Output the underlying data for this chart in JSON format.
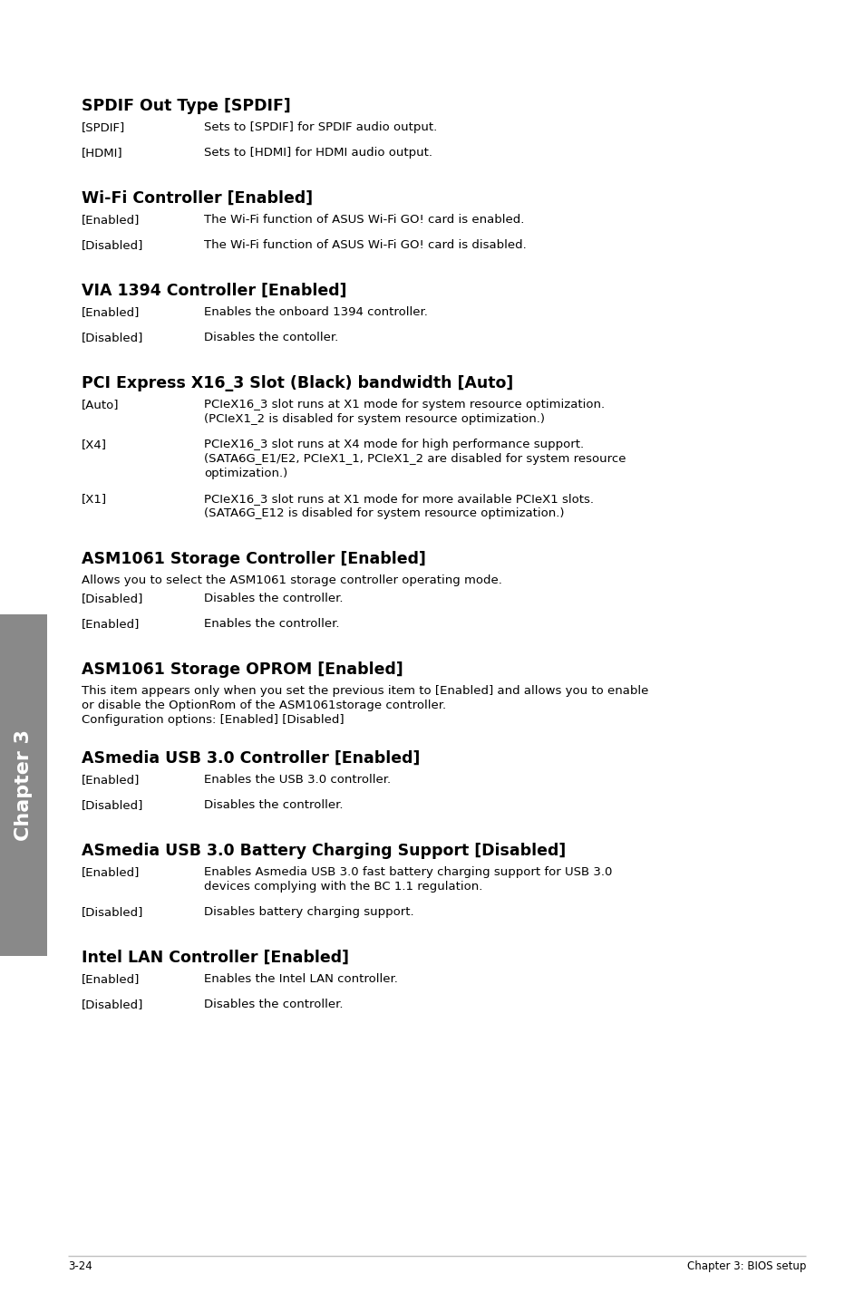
{
  "bg_color": "#ffffff",
  "text_color": "#000000",
  "sidebar_color": "#898989",
  "sidebar_text": "Chapter 3",
  "footer_left": "3-24",
  "footer_right": "Chapter 3: BIOS setup",
  "fig_w": 9.54,
  "fig_h": 14.38,
  "dpi": 100,
  "sections": [
    {
      "title": "SPDIF Out Type [SPDIF]",
      "intro": "",
      "items": [
        {
          "label": "[SPDIF]",
          "desc": "Sets to [SPDIF] for SPDIF audio output."
        },
        {
          "label": "[HDMI]",
          "desc": "Sets to [HDMI] for HDMI audio output."
        }
      ]
    },
    {
      "title": "Wi-Fi Controller [Enabled]",
      "intro": "",
      "items": [
        {
          "label": "[Enabled]",
          "desc": "The Wi-Fi function of ASUS Wi-Fi GO! card is enabled."
        },
        {
          "label": "[Disabled]",
          "desc": "The Wi-Fi function of ASUS Wi-Fi GO! card is disabled."
        }
      ]
    },
    {
      "title": "VIA 1394 Controller [Enabled]",
      "intro": "",
      "items": [
        {
          "label": "[Enabled]",
          "desc": "Enables the onboard 1394 controller."
        },
        {
          "label": "[Disabled]",
          "desc": "Disables the contoller."
        }
      ]
    },
    {
      "title": "PCI Express X16_3 Slot (Black) bandwidth [Auto]",
      "intro": "",
      "items": [
        {
          "label": "[Auto]",
          "desc": "PCIeX16_3 slot runs at X1 mode for system resource optimization.\n(PCIeX1_2 is disabled for system resource optimization.)"
        },
        {
          "label": "[X4]",
          "desc": "PCIeX16_3 slot runs at X4 mode for high performance support.\n(SATA6G_E1/E2, PCIeX1_1, PCIeX1_2 are disabled for system resource\noptimization.)"
        },
        {
          "label": "[X1]",
          "desc": "PCIeX16_3 slot runs at X1 mode for more available PCIeX1 slots.\n(SATA6G_E12 is disabled for system resource optimization.)"
        }
      ]
    },
    {
      "title": "ASM1061 Storage Controller [Enabled]",
      "intro": "Allows you to select the ASM1061 storage controller operating mode.",
      "items": [
        {
          "label": "[Disabled]",
          "desc": "Disables the controller."
        },
        {
          "label": "[Enabled]",
          "desc": "Enables the controller."
        }
      ]
    },
    {
      "title": "ASM1061 Storage OPROM [Enabled]",
      "intro": "This item appears only when you set the previous item to [Enabled] and allows you to enable\nor disable the OptionRom of the ASM1061storage controller.\nConfiguration options: [Enabled] [Disabled]",
      "items": []
    },
    {
      "title": "ASmedia USB 3.0 Controller [Enabled]",
      "intro": "",
      "items": [
        {
          "label": "[Enabled]",
          "desc": "Enables the USB 3.0 controller."
        },
        {
          "label": "[Disabled]",
          "desc": "Disables the controller."
        }
      ]
    },
    {
      "title": "ASmedia USB 3.0 Battery Charging Support [Disabled]",
      "intro": "",
      "items": [
        {
          "label": "[Enabled]",
          "desc": "Enables Asmedia USB 3.0 fast battery charging support for USB 3.0\ndevices complying with the BC 1.1 regulation."
        },
        {
          "label": "[Disabled]",
          "desc": "Disables battery charging support."
        }
      ]
    },
    {
      "title": "Intel LAN Controller [Enabled]",
      "intro": "",
      "items": [
        {
          "label": "[Enabled]",
          "desc": "Enables the Intel LAN controller."
        },
        {
          "label": "[Disabled]",
          "desc": "Disables the controller."
        }
      ]
    }
  ]
}
